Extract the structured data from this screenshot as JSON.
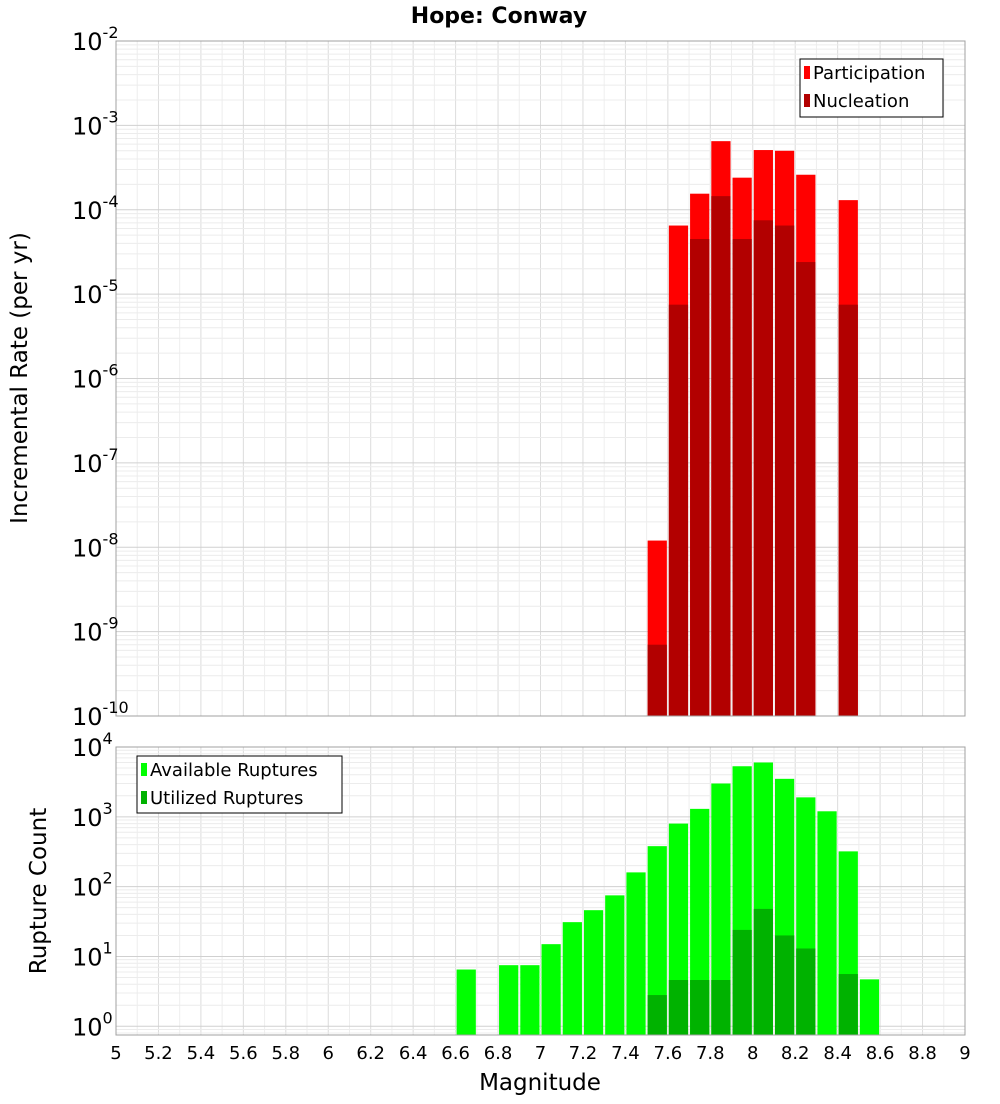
{
  "chart_data": [
    {
      "type": "bar",
      "title": "Hope: Conway",
      "xlabel": "",
      "ylabel": "Incremental Rate (per yr)",
      "yscale": "log",
      "ylim": [
        1e-10,
        0.01
      ],
      "xlim": [
        5,
        9
      ],
      "bin_width": 0.1,
      "grid": true,
      "legend_position": "top-right",
      "y_tick_labels": [
        {
          "base": "10",
          "exp": "-10"
        },
        {
          "base": "10",
          "exp": "-9"
        },
        {
          "base": "10",
          "exp": "-8"
        },
        {
          "base": "10",
          "exp": "-7"
        },
        {
          "base": "10",
          "exp": "-6"
        },
        {
          "base": "10",
          "exp": "-5"
        },
        {
          "base": "10",
          "exp": "-4"
        },
        {
          "base": "10",
          "exp": "-3"
        },
        {
          "base": "10",
          "exp": "-2"
        }
      ],
      "series": [
        {
          "name": "Participation",
          "color": "#ff0000",
          "x": [
            7.55,
            7.65,
            7.75,
            7.85,
            7.95,
            8.05,
            8.15,
            8.25,
            8.45
          ],
          "values": [
            1.2e-08,
            6.5e-05,
            0.000155,
            0.00065,
            0.00024,
            0.00051,
            0.0005,
            0.00026,
            0.00013
          ]
        },
        {
          "name": "Nucleation",
          "color": "#b20000",
          "x": [
            7.55,
            7.65,
            7.75,
            7.85,
            7.95,
            8.05,
            8.15,
            8.25,
            8.45
          ],
          "values": [
            7e-10,
            7.5e-06,
            4.5e-05,
            0.000145,
            4.5e-05,
            7.5e-05,
            6.5e-05,
            2.4e-05,
            7.5e-06
          ]
        }
      ]
    },
    {
      "type": "bar",
      "title": "",
      "xlabel": "Magnitude",
      "ylabel": "Rupture Count",
      "yscale": "log",
      "ylim": [
        0.75,
        10000
      ],
      "xlim": [
        5,
        9
      ],
      "bin_width": 0.1,
      "grid": true,
      "legend_position": "top-left",
      "x_ticks": [
        "5",
        "5.2",
        "5.4",
        "5.6",
        "5.8",
        "6",
        "6.2",
        "6.4",
        "6.6",
        "6.8",
        "7",
        "7.2",
        "7.4",
        "7.6",
        "7.8",
        "8",
        "8.2",
        "8.4",
        "8.6",
        "8.8",
        "9"
      ],
      "y_tick_labels": [
        {
          "base": "10",
          "exp": "0"
        },
        {
          "base": "10",
          "exp": "1"
        },
        {
          "base": "10",
          "exp": "2"
        },
        {
          "base": "10",
          "exp": "3"
        },
        {
          "base": "10",
          "exp": "4"
        }
      ],
      "series": [
        {
          "name": "Available Ruptures",
          "color": "#00ff00",
          "x": [
            6.65,
            6.85,
            6.95,
            7.05,
            7.15,
            7.25,
            7.35,
            7.45,
            7.55,
            7.65,
            7.75,
            7.85,
            7.95,
            8.05,
            8.15,
            8.25,
            8.35,
            8.45,
            8.55
          ],
          "values": [
            6.5,
            7.5,
            7.5,
            15,
            31,
            46,
            75,
            160,
            380,
            800,
            1300,
            3000,
            5300,
            6000,
            3500,
            1900,
            1200,
            320,
            4.7
          ]
        },
        {
          "name": "Utilized Ruptures",
          "color": "#00b200",
          "x": [
            7.55,
            7.65,
            7.75,
            7.85,
            7.95,
            8.05,
            8.15,
            8.25,
            8.45
          ],
          "values": [
            2.8,
            4.6,
            4.6,
            4.6,
            24,
            48,
            20,
            13,
            5.6
          ]
        }
      ]
    }
  ]
}
